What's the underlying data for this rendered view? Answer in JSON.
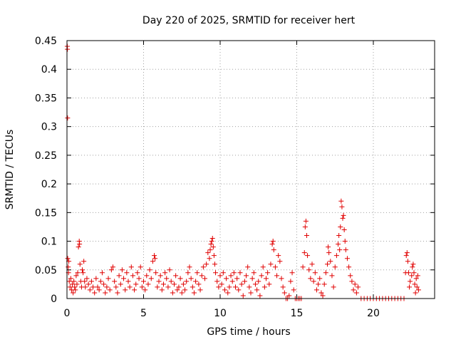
{
  "chart_data": {
    "type": "scatter",
    "title": "Day 220 of 2025, SRMTID for receiver hert",
    "xlabel": "GPS time / hours",
    "ylabel": "SRMTID / TECUs",
    "xlim": [
      0,
      24
    ],
    "ylim": [
      0,
      0.45
    ],
    "xticks": [
      0,
      5,
      10,
      15,
      20
    ],
    "yticks": [
      0,
      0.05,
      0.1,
      0.15,
      0.2,
      0.25,
      0.3,
      0.35,
      0.4,
      0.45
    ],
    "xtick_labels": [
      "0",
      "5",
      "10",
      "15",
      "20"
    ],
    "ytick_labels": [
      "0",
      "0.05",
      "0.1",
      "0.15",
      "0.2",
      "0.25",
      "0.3",
      "0.35",
      "0.4",
      "0.45"
    ],
    "grid": true,
    "marker": "+",
    "color": "#e00000",
    "series": [
      {
        "name": "SRMTID",
        "points": [
          [
            0.02,
            0.44
          ],
          [
            0.03,
            0.435
          ],
          [
            0.04,
            0.315
          ],
          [
            0.05,
            0.07
          ],
          [
            0.08,
            0.055
          ],
          [
            0.1,
            0.045
          ],
          [
            0.12,
            0.065
          ],
          [
            0.15,
            0.03
          ],
          [
            0.2,
            0.02
          ],
          [
            0.25,
            0.035
          ],
          [
            0.3,
            0.015
          ],
          [
            0.35,
            0.025
          ],
          [
            0.4,
            0.01
          ],
          [
            0.45,
            0.03
          ],
          [
            0.5,
            0.02
          ],
          [
            0.55,
            0.015
          ],
          [
            0.6,
            0.04
          ],
          [
            0.65,
            0.025
          ],
          [
            0.7,
            0.045
          ],
          [
            0.75,
            0.09
          ],
          [
            0.8,
            0.1
          ],
          [
            0.82,
            0.095
          ],
          [
            0.85,
            0.06
          ],
          [
            0.9,
            0.03
          ],
          [
            0.95,
            0.02
          ],
          [
            1.0,
            0.05
          ],
          [
            1.05,
            0.045
          ],
          [
            1.1,
            0.065
          ],
          [
            1.15,
            0.03
          ],
          [
            1.2,
            0.02
          ],
          [
            1.3,
            0.035
          ],
          [
            1.4,
            0.025
          ],
          [
            1.5,
            0.015
          ],
          [
            1.6,
            0.03
          ],
          [
            1.7,
            0.02
          ],
          [
            1.8,
            0.01
          ],
          [
            1.9,
            0.035
          ],
          [
            2.0,
            0.02
          ],
          [
            2.1,
            0.015
          ],
          [
            2.2,
            0.03
          ],
          [
            2.3,
            0.045
          ],
          [
            2.4,
            0.025
          ],
          [
            2.5,
            0.01
          ],
          [
            2.6,
            0.02
          ],
          [
            2.7,
            0.035
          ],
          [
            2.8,
            0.015
          ],
          [
            2.9,
            0.05
          ],
          [
            3.0,
            0.055
          ],
          [
            3.1,
            0.03
          ],
          [
            3.2,
            0.02
          ],
          [
            3.3,
            0.01
          ],
          [
            3.4,
            0.04
          ],
          [
            3.5,
            0.025
          ],
          [
            3.6,
            0.05
          ],
          [
            3.7,
            0.035
          ],
          [
            3.8,
            0.015
          ],
          [
            3.9,
            0.045
          ],
          [
            4.0,
            0.03
          ],
          [
            4.1,
            0.02
          ],
          [
            4.2,
            0.055
          ],
          [
            4.3,
            0.04
          ],
          [
            4.4,
            0.015
          ],
          [
            4.5,
            0.025
          ],
          [
            4.6,
            0.045
          ],
          [
            4.7,
            0.035
          ],
          [
            4.8,
            0.055
          ],
          [
            4.9,
            0.02
          ],
          [
            5.0,
            0.03
          ],
          [
            5.1,
            0.015
          ],
          [
            5.2,
            0.04
          ],
          [
            5.3,
            0.025
          ],
          [
            5.4,
            0.05
          ],
          [
            5.5,
            0.035
          ],
          [
            5.6,
            0.065
          ],
          [
            5.7,
            0.075
          ],
          [
            5.75,
            0.07
          ],
          [
            5.8,
            0.045
          ],
          [
            5.9,
            0.02
          ],
          [
            6.0,
            0.03
          ],
          [
            6.1,
            0.04
          ],
          [
            6.2,
            0.015
          ],
          [
            6.3,
            0.025
          ],
          [
            6.4,
            0.045
          ],
          [
            6.5,
            0.035
          ],
          [
            6.6,
            0.02
          ],
          [
            6.7,
            0.05
          ],
          [
            6.8,
            0.03
          ],
          [
            6.9,
            0.01
          ],
          [
            7.0,
            0.025
          ],
          [
            7.1,
            0.04
          ],
          [
            7.2,
            0.015
          ],
          [
            7.3,
            0.02
          ],
          [
            7.4,
            0.035
          ],
          [
            7.5,
            0.01
          ],
          [
            7.6,
            0.025
          ],
          [
            7.7,
            0.015
          ],
          [
            7.8,
            0.03
          ],
          [
            7.9,
            0.045
          ],
          [
            8.0,
            0.055
          ],
          [
            8.1,
            0.035
          ],
          [
            8.2,
            0.02
          ],
          [
            8.3,
            0.01
          ],
          [
            8.4,
            0.03
          ],
          [
            8.5,
            0.045
          ],
          [
            8.6,
            0.025
          ],
          [
            8.7,
            0.015
          ],
          [
            8.8,
            0.04
          ],
          [
            8.9,
            0.055
          ],
          [
            9.0,
            0.035
          ],
          [
            9.1,
            0.06
          ],
          [
            9.2,
            0.08
          ],
          [
            9.3,
            0.07
          ],
          [
            9.35,
            0.085
          ],
          [
            9.4,
            0.095
          ],
          [
            9.45,
            0.1
          ],
          [
            9.5,
            0.105
          ],
          [
            9.55,
            0.09
          ],
          [
            9.6,
            0.075
          ],
          [
            9.65,
            0.06
          ],
          [
            9.7,
            0.045
          ],
          [
            9.8,
            0.03
          ],
          [
            9.9,
            0.02
          ],
          [
            10.0,
            0.04
          ],
          [
            10.1,
            0.025
          ],
          [
            10.2,
            0.045
          ],
          [
            10.3,
            0.015
          ],
          [
            10.4,
            0.035
          ],
          [
            10.5,
            0.01
          ],
          [
            10.6,
            0.02
          ],
          [
            10.7,
            0.04
          ],
          [
            10.8,
            0.03
          ],
          [
            10.9,
            0.045
          ],
          [
            11.0,
            0.02
          ],
          [
            11.1,
            0.035
          ],
          [
            11.2,
            0.015
          ],
          [
            11.3,
            0.045
          ],
          [
            11.4,
            0.025
          ],
          [
            11.5,
            0.005
          ],
          [
            11.6,
            0.03
          ],
          [
            11.7,
            0.04
          ],
          [
            11.8,
            0.055
          ],
          [
            11.9,
            0.02
          ],
          [
            12.0,
            0.01
          ],
          [
            12.1,
            0.035
          ],
          [
            12.2,
            0.045
          ],
          [
            12.3,
            0.025
          ],
          [
            12.4,
            0.015
          ],
          [
            12.5,
            0.03
          ],
          [
            12.6,
            0.005
          ],
          [
            12.7,
            0.04
          ],
          [
            12.8,
            0.055
          ],
          [
            12.9,
            0.02
          ],
          [
            13.0,
            0.035
          ],
          [
            13.1,
            0.045
          ],
          [
            13.2,
            0.025
          ],
          [
            13.3,
            0.06
          ],
          [
            13.4,
            0.095
          ],
          [
            13.45,
            0.1
          ],
          [
            13.5,
            0.085
          ],
          [
            13.6,
            0.055
          ],
          [
            13.7,
            0.04
          ],
          [
            13.8,
            0.075
          ],
          [
            13.9,
            0.065
          ],
          [
            14.0,
            0.035
          ],
          [
            14.1,
            0.02
          ],
          [
            14.2,
            0.01
          ],
          [
            14.3,
            0.0
          ],
          [
            14.4,
            0.0
          ],
          [
            14.5,
            0.005
          ],
          [
            14.6,
            0.03
          ],
          [
            14.7,
            0.045
          ],
          [
            14.8,
            0.015
          ],
          [
            14.9,
            0.0
          ],
          [
            15.0,
            0.0
          ],
          [
            15.1,
            0.0
          ],
          [
            15.2,
            0.0
          ],
          [
            15.3,
            0.0
          ],
          [
            15.4,
            0.055
          ],
          [
            15.5,
            0.08
          ],
          [
            15.55,
            0.125
          ],
          [
            15.6,
            0.135
          ],
          [
            15.65,
            0.11
          ],
          [
            15.7,
            0.075
          ],
          [
            15.8,
            0.05
          ],
          [
            15.9,
            0.035
          ],
          [
            16.0,
            0.06
          ],
          [
            16.1,
            0.03
          ],
          [
            16.2,
            0.045
          ],
          [
            16.3,
            0.015
          ],
          [
            16.4,
            0.025
          ],
          [
            16.5,
            0.035
          ],
          [
            16.6,
            0.01
          ],
          [
            16.7,
            0.005
          ],
          [
            16.8,
            0.025
          ],
          [
            16.9,
            0.045
          ],
          [
            17.0,
            0.06
          ],
          [
            17.05,
            0.09
          ],
          [
            17.1,
            0.08
          ],
          [
            17.2,
            0.065
          ],
          [
            17.3,
            0.04
          ],
          [
            17.4,
            0.02
          ],
          [
            17.5,
            0.055
          ],
          [
            17.6,
            0.075
          ],
          [
            17.7,
            0.095
          ],
          [
            17.75,
            0.11
          ],
          [
            17.8,
            0.085
          ],
          [
            17.85,
            0.125
          ],
          [
            17.9,
            0.17
          ],
          [
            17.95,
            0.16
          ],
          [
            18.0,
            0.14
          ],
          [
            18.05,
            0.145
          ],
          [
            18.1,
            0.12
          ],
          [
            18.15,
            0.1
          ],
          [
            18.2,
            0.085
          ],
          [
            18.3,
            0.07
          ],
          [
            18.4,
            0.055
          ],
          [
            18.5,
            0.04
          ],
          [
            18.6,
            0.03
          ],
          [
            18.7,
            0.015
          ],
          [
            18.8,
            0.025
          ],
          [
            18.9,
            0.01
          ],
          [
            19.0,
            0.02
          ],
          [
            19.2,
            0.0
          ],
          [
            19.4,
            0.0
          ],
          [
            19.6,
            0.0
          ],
          [
            19.8,
            0.0
          ],
          [
            20.0,
            0.0
          ],
          [
            20.2,
            0.0
          ],
          [
            20.4,
            0.0
          ],
          [
            20.6,
            0.0
          ],
          [
            20.8,
            0.0
          ],
          [
            21.0,
            0.0
          ],
          [
            21.2,
            0.0
          ],
          [
            21.4,
            0.0
          ],
          [
            21.6,
            0.0
          ],
          [
            21.8,
            0.0
          ],
          [
            22.0,
            0.0
          ],
          [
            22.1,
            0.045
          ],
          [
            22.15,
            0.075
          ],
          [
            22.2,
            0.08
          ],
          [
            22.25,
            0.065
          ],
          [
            22.3,
            0.045
          ],
          [
            22.35,
            0.02
          ],
          [
            22.4,
            0.03
          ],
          [
            22.5,
            0.04
          ],
          [
            22.55,
            0.055
          ],
          [
            22.6,
            0.06
          ],
          [
            22.65,
            0.045
          ],
          [
            22.7,
            0.025
          ],
          [
            22.75,
            0.01
          ],
          [
            22.8,
            0.035
          ],
          [
            22.85,
            0.02
          ],
          [
            22.9,
            0.04
          ],
          [
            22.95,
            0.015
          ]
        ]
      }
    ]
  }
}
